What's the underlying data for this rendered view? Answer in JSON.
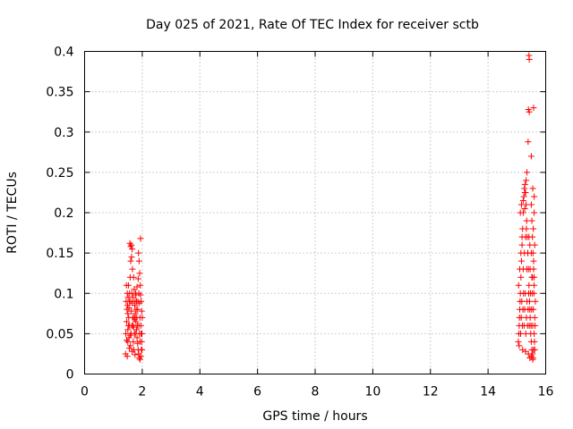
{
  "chart_data": {
    "type": "scatter",
    "title": "Day 025 of 2021, Rate Of TEC Index for receiver sctb",
    "xlabel": "GPS time / hours",
    "ylabel": "ROTI / TECUs",
    "xlim": [
      0,
      16
    ],
    "ylim": [
      0,
      0.4
    ],
    "xticks": [
      "0",
      "2",
      "4",
      "6",
      "8",
      "10",
      "12",
      "14",
      "16"
    ],
    "yticks": [
      "0",
      "0.05",
      "0.1",
      "0.15",
      "0.2",
      "0.25",
      "0.3",
      "0.35",
      "0.4"
    ],
    "grid": true,
    "marker": "+",
    "color": "#ff0000",
    "series": [
      {
        "points": [
          [
            1.42,
            0.025
          ],
          [
            1.48,
            0.022
          ],
          [
            1.5,
            0.04
          ],
          [
            1.52,
            0.06
          ],
          [
            1.55,
            0.09
          ],
          [
            1.45,
            0.11
          ],
          [
            1.47,
            0.08
          ],
          [
            1.5,
            0.055
          ],
          [
            1.53,
            0.07
          ],
          [
            1.56,
            0.1
          ],
          [
            1.58,
            0.12
          ],
          [
            1.6,
            0.14
          ],
          [
            1.62,
            0.16
          ],
          [
            1.65,
            0.155
          ],
          [
            1.57,
            0.162
          ],
          [
            1.6,
            0.158
          ],
          [
            1.63,
            0.145
          ],
          [
            1.66,
            0.13
          ],
          [
            1.7,
            0.12
          ],
          [
            1.72,
            0.105
          ],
          [
            1.68,
            0.095
          ],
          [
            1.74,
            0.085
          ],
          [
            1.76,
            0.075
          ],
          [
            1.78,
            0.065
          ],
          [
            1.8,
            0.055
          ],
          [
            1.82,
            0.045
          ],
          [
            1.84,
            0.038
          ],
          [
            1.86,
            0.03
          ],
          [
            1.88,
            0.025
          ],
          [
            1.9,
            0.02
          ],
          [
            1.92,
            0.018
          ],
          [
            1.95,
            0.022
          ],
          [
            1.97,
            0.03
          ],
          [
            1.99,
            0.05
          ],
          [
            2.0,
            0.07
          ],
          [
            1.96,
            0.09
          ],
          [
            1.93,
            0.11
          ],
          [
            1.91,
            0.125
          ],
          [
            1.89,
            0.14
          ],
          [
            1.87,
            0.15
          ],
          [
            1.94,
            0.168
          ],
          [
            1.43,
            0.05
          ],
          [
            1.46,
            0.065
          ],
          [
            1.49,
            0.085
          ],
          [
            1.51,
            0.095
          ],
          [
            1.54,
            0.045
          ],
          [
            1.59,
            0.035
          ],
          [
            1.61,
            0.05
          ],
          [
            1.64,
            0.06
          ],
          [
            1.67,
            0.07
          ],
          [
            1.69,
            0.04
          ],
          [
            1.71,
            0.03
          ],
          [
            1.73,
            0.05
          ],
          [
            1.75,
            0.09
          ],
          [
            1.77,
            0.1
          ],
          [
            1.79,
            0.08
          ],
          [
            1.81,
            0.07
          ],
          [
            1.83,
            0.06
          ],
          [
            1.85,
            0.09
          ],
          [
            1.88,
            0.06
          ],
          [
            1.9,
            0.05
          ],
          [
            1.92,
            0.04
          ],
          [
            1.95,
            0.06
          ],
          [
            1.98,
            0.04
          ],
          [
            1.44,
            0.09
          ],
          [
            1.48,
            0.1
          ],
          [
            1.52,
            0.11
          ],
          [
            1.56,
            0.06
          ],
          [
            1.6,
            0.09
          ],
          [
            1.64,
            0.1
          ],
          [
            1.68,
            0.06
          ],
          [
            1.72,
            0.07
          ],
          [
            1.76,
            0.05
          ],
          [
            1.8,
            0.09
          ],
          [
            1.84,
            0.08
          ],
          [
            1.88,
            0.1
          ],
          [
            1.92,
            0.07
          ],
          [
            1.96,
            0.05
          ],
          [
            1.99,
            0.03
          ],
          [
            1.5,
            0.075
          ],
          [
            1.54,
            0.082
          ],
          [
            1.58,
            0.048
          ],
          [
            1.62,
            0.078
          ],
          [
            1.66,
            0.088
          ],
          [
            1.7,
            0.058
          ],
          [
            1.74,
            0.068
          ],
          [
            1.78,
            0.098
          ],
          [
            1.82,
            0.108
          ],
          [
            1.86,
            0.118
          ],
          [
            1.9,
            0.088
          ],
          [
            1.94,
            0.098
          ],
          [
            1.98,
            0.078
          ],
          [
            1.46,
            0.042
          ],
          [
            1.55,
            0.032
          ],
          [
            1.65,
            0.028
          ],
          [
            1.75,
            0.024
          ]
        ]
      },
      {
        "points": [
          [
            15.05,
            0.04
          ],
          [
            15.08,
            0.06
          ],
          [
            15.1,
            0.08
          ],
          [
            15.12,
            0.1
          ],
          [
            15.14,
            0.12
          ],
          [
            15.16,
            0.14
          ],
          [
            15.18,
            0.16
          ],
          [
            15.2,
            0.18
          ],
          [
            15.22,
            0.2
          ],
          [
            15.24,
            0.22
          ],
          [
            15.26,
            0.23
          ],
          [
            15.28,
            0.235
          ],
          [
            15.3,
            0.225
          ],
          [
            15.32,
            0.21
          ],
          [
            15.34,
            0.19
          ],
          [
            15.36,
            0.17
          ],
          [
            15.38,
            0.15
          ],
          [
            15.4,
            0.13
          ],
          [
            15.42,
            0.11
          ],
          [
            15.44,
            0.09
          ],
          [
            15.46,
            0.07
          ],
          [
            15.48,
            0.05
          ],
          [
            15.5,
            0.04
          ],
          [
            15.52,
            0.03
          ],
          [
            15.54,
            0.025
          ],
          [
            15.56,
            0.02
          ],
          [
            15.58,
            0.03
          ],
          [
            15.6,
            0.05
          ],
          [
            15.62,
            0.07
          ],
          [
            15.64,
            0.09
          ],
          [
            15.6,
            0.11
          ],
          [
            15.58,
            0.13
          ],
          [
            15.56,
            0.15
          ],
          [
            15.54,
            0.17
          ],
          [
            15.52,
            0.19
          ],
          [
            15.5,
            0.21
          ],
          [
            15.55,
            0.23
          ],
          [
            15.6,
            0.2
          ],
          [
            15.62,
            0.16
          ],
          [
            15.6,
            0.12
          ],
          [
            15.42,
            0.395
          ],
          [
            15.43,
            0.39
          ],
          [
            15.4,
            0.328
          ],
          [
            15.43,
            0.325
          ],
          [
            15.58,
            0.33
          ],
          [
            15.39,
            0.288
          ],
          [
            15.5,
            0.27
          ],
          [
            15.35,
            0.25
          ],
          [
            15.32,
            0.24
          ],
          [
            15.28,
            0.225
          ],
          [
            15.07,
            0.05
          ],
          [
            15.09,
            0.07
          ],
          [
            15.11,
            0.09
          ],
          [
            15.13,
            0.05
          ],
          [
            15.15,
            0.07
          ],
          [
            15.17,
            0.09
          ],
          [
            15.19,
            0.06
          ],
          [
            15.21,
            0.08
          ],
          [
            15.23,
            0.1
          ],
          [
            15.25,
            0.06
          ],
          [
            15.27,
            0.08
          ],
          [
            15.29,
            0.1
          ],
          [
            15.31,
            0.05
          ],
          [
            15.33,
            0.07
          ],
          [
            15.35,
            0.09
          ],
          [
            15.37,
            0.06
          ],
          [
            15.39,
            0.08
          ],
          [
            15.41,
            0.1
          ],
          [
            15.43,
            0.06
          ],
          [
            15.45,
            0.08
          ],
          [
            15.47,
            0.1
          ],
          [
            15.49,
            0.06
          ],
          [
            15.51,
            0.08
          ],
          [
            15.53,
            0.1
          ],
          [
            15.55,
            0.06
          ],
          [
            15.57,
            0.08
          ],
          [
            15.59,
            0.1
          ],
          [
            15.61,
            0.04
          ],
          [
            15.63,
            0.06
          ],
          [
            15.06,
            0.11
          ],
          [
            15.1,
            0.13
          ],
          [
            15.14,
            0.15
          ],
          [
            15.18,
            0.17
          ],
          [
            15.22,
            0.13
          ],
          [
            15.26,
            0.15
          ],
          [
            15.3,
            0.17
          ],
          [
            15.34,
            0.13
          ],
          [
            15.38,
            0.15
          ],
          [
            15.42,
            0.17
          ],
          [
            15.46,
            0.13
          ],
          [
            15.5,
            0.15
          ],
          [
            15.54,
            0.12
          ],
          [
            15.58,
            0.14
          ],
          [
            15.08,
            0.035
          ],
          [
            15.2,
            0.03
          ],
          [
            15.3,
            0.028
          ],
          [
            15.4,
            0.025
          ],
          [
            15.45,
            0.02
          ],
          [
            15.5,
            0.022
          ],
          [
            15.55,
            0.018
          ],
          [
            15.62,
            0.03
          ],
          [
            15.12,
            0.2
          ],
          [
            15.16,
            0.21
          ],
          [
            15.22,
            0.215
          ],
          [
            15.27,
            0.205
          ],
          [
            15.33,
            0.18
          ],
          [
            15.45,
            0.16
          ],
          [
            15.52,
            0.12
          ],
          [
            15.57,
            0.18
          ],
          [
            15.6,
            0.22
          ]
        ]
      }
    ]
  }
}
